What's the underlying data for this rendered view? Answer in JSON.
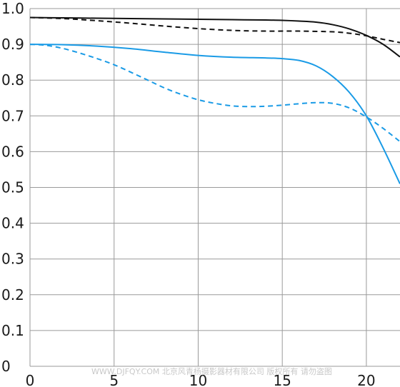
{
  "chart_data": {
    "type": "line",
    "title": "",
    "xlabel": "",
    "ylabel": "",
    "xlim": [
      0,
      22
    ],
    "ylim": [
      0,
      1.0
    ],
    "grid": true,
    "legend": "none",
    "xticks": [
      "0",
      "5",
      "10",
      "15",
      "20"
    ],
    "yticks": [
      "0",
      "0.1",
      "0.2",
      "0.3",
      "0.4",
      "0.5",
      "0.6",
      "0.7",
      "0.8",
      "0.9",
      "1.0"
    ],
    "series": [
      {
        "color": "#111111",
        "dash": "solid",
        "x": [
          0,
          2,
          4,
          6,
          8,
          10,
          12,
          14,
          15,
          16,
          17,
          18,
          19,
          20,
          21,
          22
        ],
        "y": [
          0.975,
          0.974,
          0.973,
          0.972,
          0.971,
          0.97,
          0.969,
          0.968,
          0.967,
          0.965,
          0.962,
          0.955,
          0.943,
          0.925,
          0.9,
          0.865
        ]
      },
      {
        "color": "#111111",
        "dash": "dashed",
        "x": [
          0,
          2,
          4,
          6,
          8,
          10,
          12,
          14,
          16,
          18,
          19,
          20,
          21,
          22
        ],
        "y": [
          0.975,
          0.972,
          0.966,
          0.959,
          0.951,
          0.944,
          0.939,
          0.937,
          0.937,
          0.935,
          0.931,
          0.924,
          0.914,
          0.905
        ]
      },
      {
        "color": "#1a9be6",
        "dash": "solid",
        "x": [
          0,
          2,
          4,
          6,
          8,
          10,
          12,
          14,
          15,
          16,
          17,
          18,
          19,
          20,
          21,
          22
        ],
        "y": [
          0.9,
          0.899,
          0.895,
          0.888,
          0.878,
          0.869,
          0.864,
          0.862,
          0.86,
          0.855,
          0.84,
          0.81,
          0.765,
          0.7,
          0.61,
          0.51
        ]
      },
      {
        "color": "#1a9be6",
        "dash": "dashed",
        "x": [
          0,
          1,
          2,
          3,
          4,
          5,
          6,
          7,
          8,
          9,
          10,
          11,
          12,
          13,
          14,
          15,
          16,
          17,
          18,
          19,
          20,
          21,
          22
        ],
        "y": [
          0.9,
          0.897,
          0.888,
          0.875,
          0.86,
          0.843,
          0.822,
          0.8,
          0.778,
          0.76,
          0.745,
          0.735,
          0.728,
          0.726,
          0.727,
          0.73,
          0.734,
          0.737,
          0.735,
          0.722,
          0.697,
          0.665,
          0.628
        ]
      }
    ]
  },
  "watermark": "WWW.DJFQY.COM 北京风青杨摄影器材有限公司 版权所有 请勿盗图"
}
